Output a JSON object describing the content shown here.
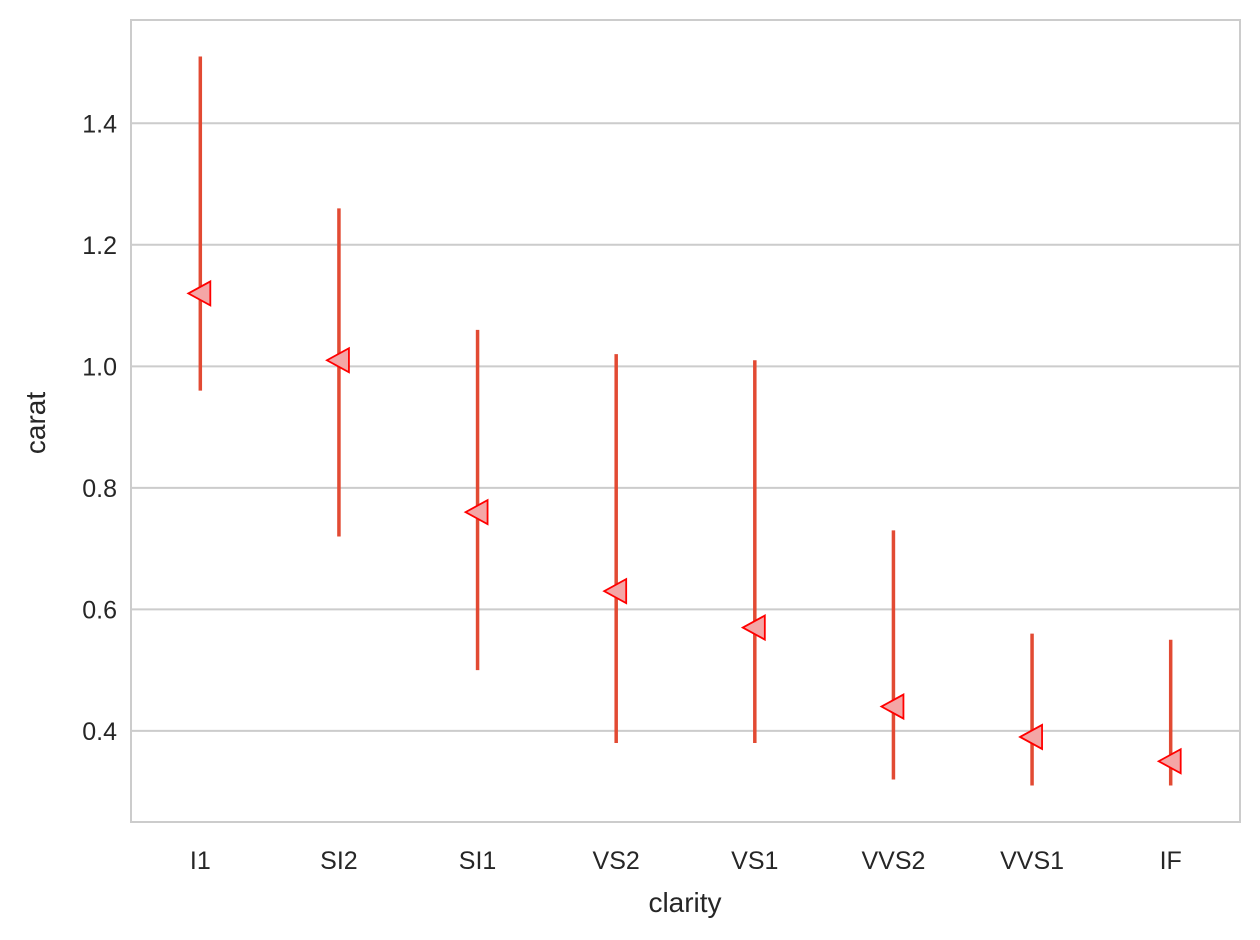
{
  "chart_data": {
    "type": "pointplot",
    "xlabel": "clarity",
    "ylabel": "carat",
    "categories": [
      "I1",
      "SI2",
      "SI1",
      "VS2",
      "VS1",
      "VVS2",
      "VVS1",
      "IF"
    ],
    "series": [
      {
        "values": [
          1.12,
          1.01,
          0.76,
          0.63,
          0.57,
          0.44,
          0.39,
          0.35
        ],
        "error_low": [
          0.96,
          0.72,
          0.5,
          0.38,
          0.38,
          0.32,
          0.31,
          0.31
        ],
        "error_high": [
          1.51,
          1.26,
          1.06,
          1.02,
          1.01,
          0.73,
          0.56,
          0.55
        ],
        "marker": "triangle-left"
      }
    ],
    "ylim": [
      0.25,
      1.57
    ],
    "yticks": [
      0.4,
      0.6,
      0.8,
      1.0,
      1.2,
      1.4
    ],
    "ytick_labels": [
      "0.4",
      "0.6",
      "0.8",
      "1.0",
      "1.2",
      "1.4"
    ],
    "grid": true,
    "grid_axis": "y",
    "colors": {
      "errorbar": "#e24a33",
      "marker_fill": "#f4a6a6",
      "marker_edge": "#ff0000",
      "grid": "#cccccc",
      "spine": "#cccccc",
      "text": "#262626"
    }
  }
}
